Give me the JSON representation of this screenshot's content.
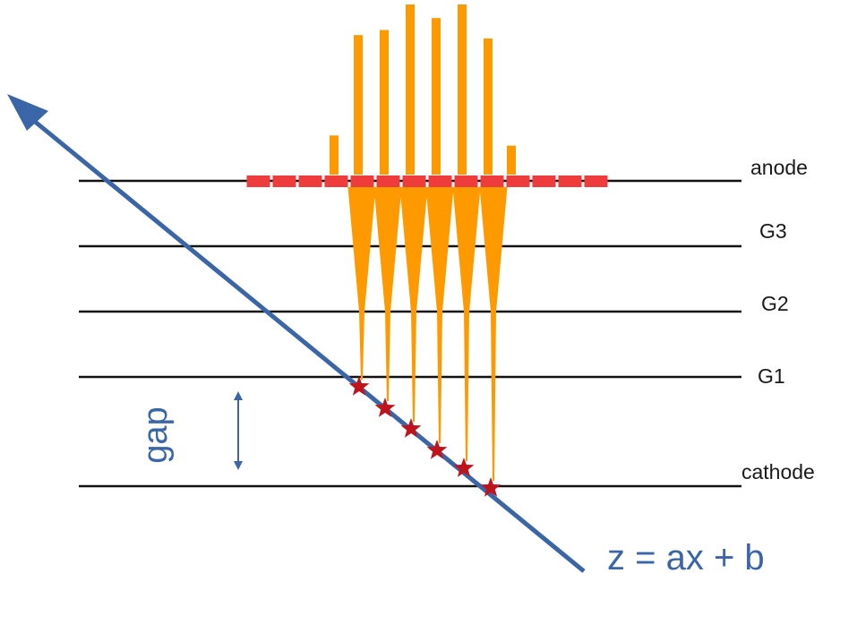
{
  "layers": [
    {
      "id": "anode",
      "label": "anode"
    },
    {
      "id": "g3",
      "label": "G3"
    },
    {
      "id": "g2",
      "label": "G2"
    },
    {
      "id": "g1",
      "label": "G1"
    },
    {
      "id": "cathode",
      "label": "cathode"
    }
  ],
  "gap_label": "gap",
  "track_equation": "z = ax + b",
  "colors": {
    "track": "#3a66a8",
    "signal_bar": "#ff9900",
    "anode_pad": "#ee3b3b",
    "ionization_star": "#c0141c",
    "electrode": "#111111",
    "gap_arrow": "#3a66a8"
  },
  "signal_bars": {
    "relative_heights": [
      0.23,
      0.82,
      0.85,
      1.0,
      0.92,
      1.0,
      0.8,
      0.17
    ]
  },
  "anode_pad_count": 14,
  "ionization_count": 6
}
